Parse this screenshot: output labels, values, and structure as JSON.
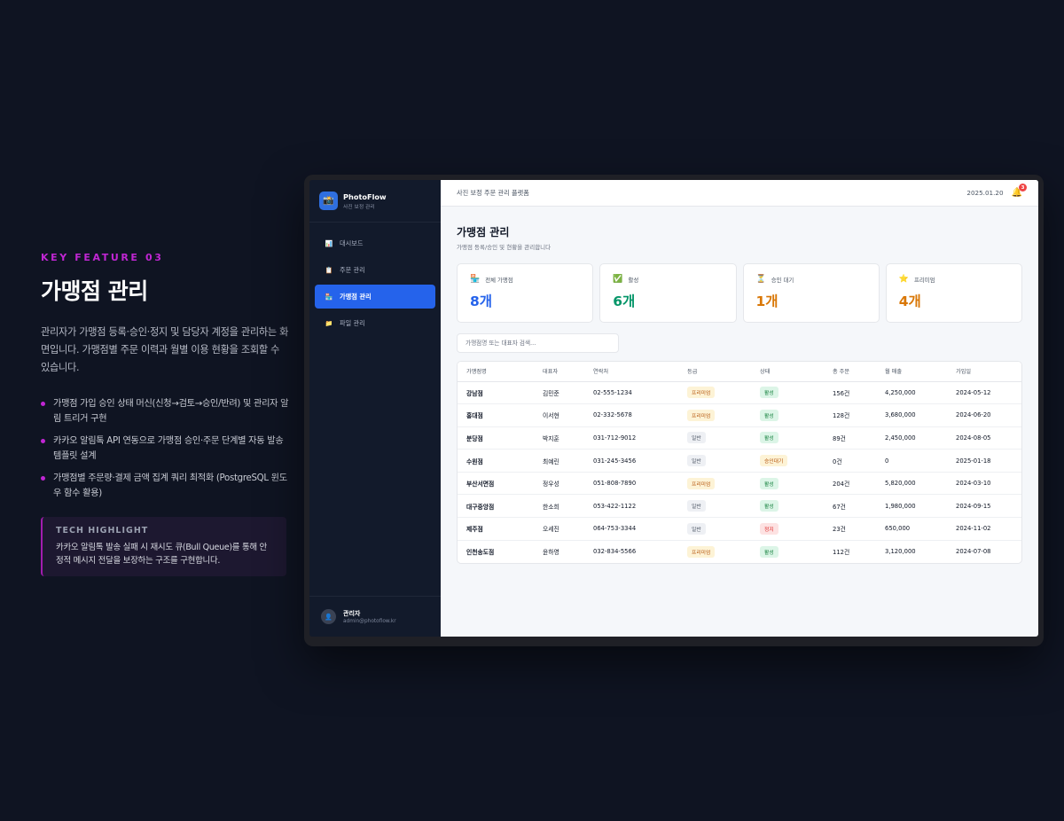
{
  "promo": {
    "tag": "KEY FEATURE 03",
    "title": "가맹점 관리",
    "description": "관리자가 가맹점 등록·승인·정지 및 담당자 계정을 관리하는 화면입니다. 가맹점별 주문 이력과 월별 이용 현황을 조회할 수 있습니다.",
    "bullets": [
      "가맹점 가입 승인 상태 머신(신청→검토→승인/반려) 및 관리자 알림 트리거 구현",
      "카카오 알림톡 API 연동으로 가맹점 승인·주문 단계별 자동 발송 템플릿 설계",
      "가맹점별 주문량·결제 금액 집계 쿼리 최적화 (PostgreSQL 윈도우 함수 활용)"
    ],
    "tech_label": "TECH HIGHLIGHT",
    "tech_text": "카카오 알림톡 발송 실패 시 재시도 큐(Bull Queue)를 통해 안정적 메시지 전달을 보장하는 구조를 구현합니다."
  },
  "sidebar": {
    "brand_name": "PhotoFlow",
    "brand_sub": "사진 보정 관리",
    "items": [
      {
        "label": "대시보드",
        "icon": "chart-icon"
      },
      {
        "label": "주문 관리",
        "icon": "clipboard-icon"
      },
      {
        "label": "가맹점 관리",
        "icon": "store-icon"
      },
      {
        "label": "파일 관리",
        "icon": "folder-icon"
      }
    ],
    "user_name": "관리자",
    "user_email": "admin@photoflow.kr"
  },
  "topbar": {
    "title": "사진 보정 주문 관리 플랫폼",
    "date": "2025.01.20",
    "notification_count": "3"
  },
  "page": {
    "title": "가맹점 관리",
    "subtitle": "가맹점 등록/승인 및 현황을 관리합니다"
  },
  "stats": [
    {
      "label": "전체 가맹점",
      "value": "8개",
      "color": "#2563eb",
      "icon": "store-icon"
    },
    {
      "label": "활성",
      "value": "6개",
      "color": "#059669",
      "icon": "check-icon"
    },
    {
      "label": "승인 대기",
      "value": "1개",
      "color": "#d97706",
      "icon": "hourglass-icon"
    },
    {
      "label": "프리미엄",
      "value": "4개",
      "color": "#d97706",
      "icon": "star-icon"
    }
  ],
  "search": {
    "placeholder": "가맹점명 또는 대표자 검색..."
  },
  "table": {
    "headers": [
      "가맹점명",
      "대표자",
      "연락처",
      "등급",
      "상태",
      "총 주문",
      "월 매출",
      "가입일"
    ],
    "rows": [
      {
        "name": "강남점",
        "owner": "김민준",
        "phone": "02-555-1234",
        "grade": "프리미엄",
        "grade_type": "premium",
        "status": "활성",
        "status_type": "active",
        "orders": "156건",
        "revenue": "4,250,000",
        "joined": "2024-05-12"
      },
      {
        "name": "홍대점",
        "owner": "이서현",
        "phone": "02-332-5678",
        "grade": "프리미엄",
        "grade_type": "premium",
        "status": "활성",
        "status_type": "active",
        "orders": "128건",
        "revenue": "3,680,000",
        "joined": "2024-06-20"
      },
      {
        "name": "분당점",
        "owner": "박지훈",
        "phone": "031-712-9012",
        "grade": "일반",
        "grade_type": "normal",
        "status": "활성",
        "status_type": "active",
        "orders": "89건",
        "revenue": "2,450,000",
        "joined": "2024-08-05"
      },
      {
        "name": "수원점",
        "owner": "최예린",
        "phone": "031-245-3456",
        "grade": "일반",
        "grade_type": "normal",
        "status": "승인대기",
        "status_type": "pending",
        "orders": "0건",
        "revenue": "0",
        "joined": "2025-01-18"
      },
      {
        "name": "부산서면점",
        "owner": "정우성",
        "phone": "051-808-7890",
        "grade": "프리미엄",
        "grade_type": "premium",
        "status": "활성",
        "status_type": "active",
        "orders": "204건",
        "revenue": "5,820,000",
        "joined": "2024-03-10"
      },
      {
        "name": "대구중앙점",
        "owner": "한소희",
        "phone": "053-422-1122",
        "grade": "일반",
        "grade_type": "normal",
        "status": "활성",
        "status_type": "active",
        "orders": "67건",
        "revenue": "1,980,000",
        "joined": "2024-09-15"
      },
      {
        "name": "제주점",
        "owner": "오세진",
        "phone": "064-753-3344",
        "grade": "일반",
        "grade_type": "normal",
        "status": "정지",
        "status_type": "stopped",
        "orders": "23건",
        "revenue": "650,000",
        "joined": "2024-11-02"
      },
      {
        "name": "인천송도점",
        "owner": "윤하영",
        "phone": "032-834-5566",
        "grade": "프리미엄",
        "grade_type": "premium",
        "status": "활성",
        "status_type": "active",
        "orders": "112건",
        "revenue": "3,120,000",
        "joined": "2024-07-08"
      }
    ]
  }
}
